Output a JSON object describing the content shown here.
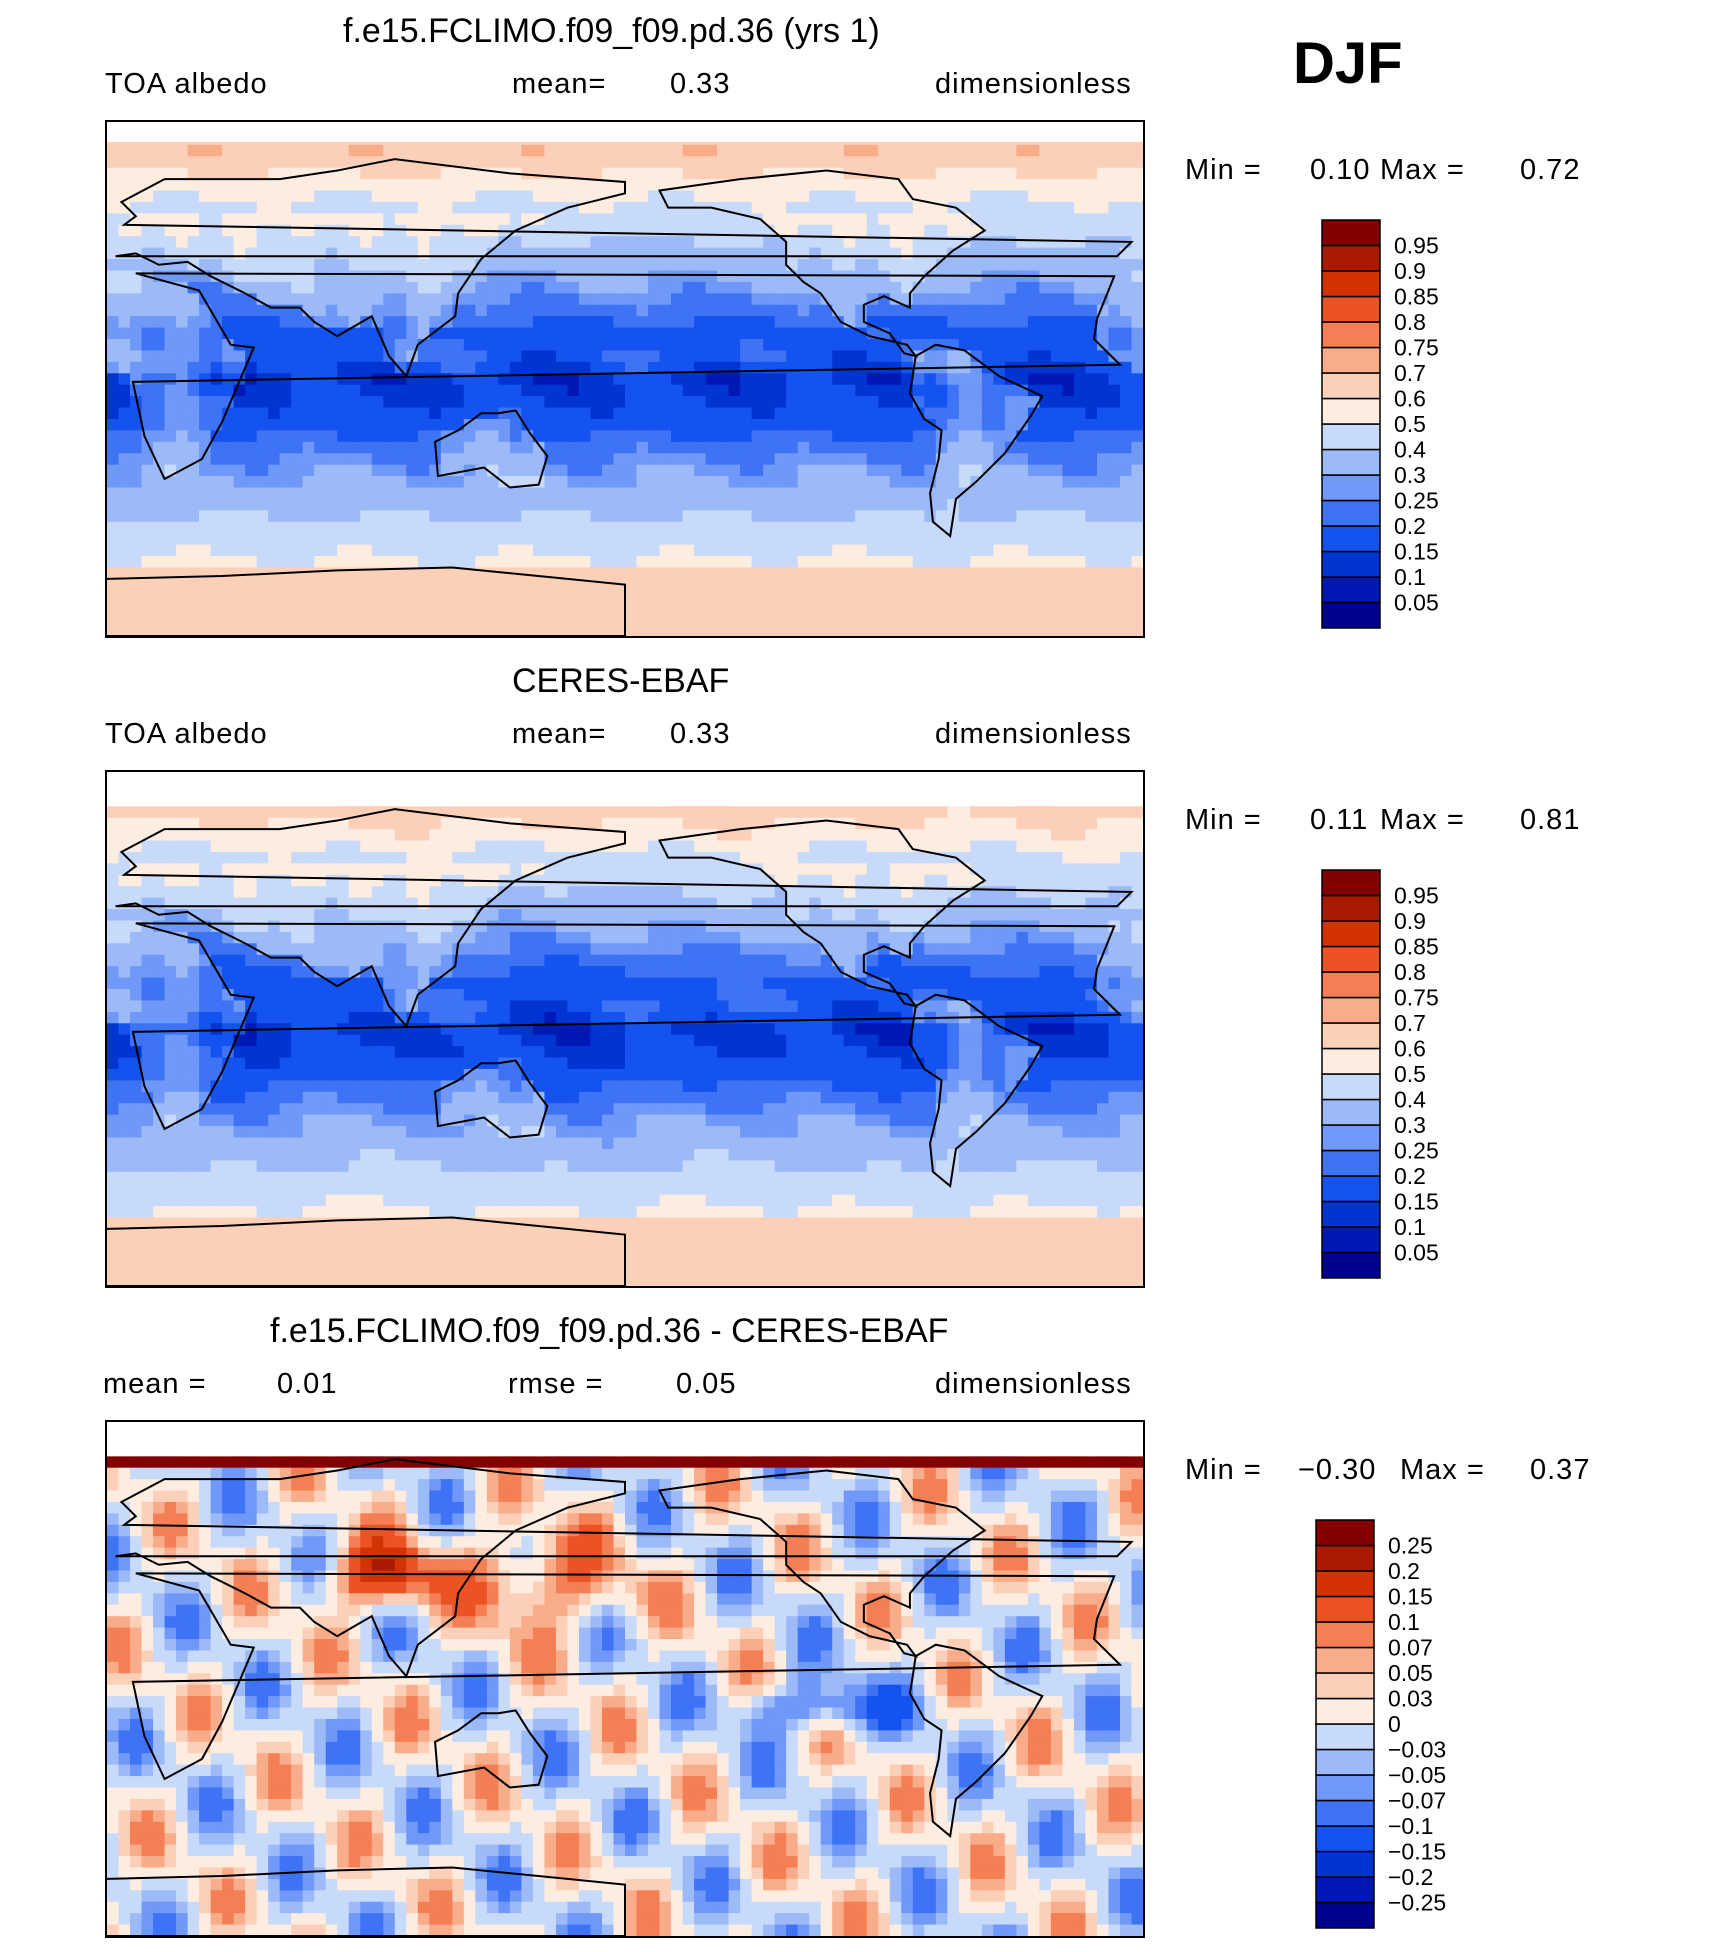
{
  "season": "DJF",
  "colors": {
    "ramp": [
      "#00008e",
      "#0018b4",
      "#0035d3",
      "#1553f0",
      "#3d73f4",
      "#6f98f8",
      "#9dbaf8",
      "#c8daf9",
      "#e2edfb",
      "#fdece0",
      "#fcd0b8",
      "#f9ac8a",
      "#f47f55",
      "#eb5325",
      "#d23204",
      "#a91a00",
      "#840000"
    ],
    "coast": "#000000"
  },
  "panels": [
    {
      "id": "model",
      "title": "f.e15.FCLIMO.f09_f09.pd.36 (yrs 1)",
      "left_label": "TOA albedo",
      "mid_label": "mean=",
      "mid_value": "0.33",
      "right_label": "dimensionless",
      "min_label": "Min =",
      "min_value": "0.10",
      "max_label": "Max =",
      "max_value": "0.72",
      "levels": [
        "0.05",
        "0.1",
        "0.15",
        "0.2",
        "0.25",
        "0.3",
        "0.4",
        "0.5",
        "0.6",
        "0.7",
        "0.75",
        "0.8",
        "0.85",
        "0.9",
        "0.95"
      ],
      "field": "model"
    },
    {
      "id": "obs",
      "title": "CERES-EBAF",
      "left_label": "TOA albedo",
      "mid_label": "mean=",
      "mid_value": "0.33",
      "right_label": "dimensionless",
      "min_label": "Min =",
      "min_value": "0.11",
      "max_label": "Max =",
      "max_value": "0.81",
      "levels": [
        "0.05",
        "0.1",
        "0.15",
        "0.2",
        "0.25",
        "0.3",
        "0.4",
        "0.5",
        "0.6",
        "0.7",
        "0.75",
        "0.8",
        "0.85",
        "0.9",
        "0.95"
      ],
      "field": "obs"
    },
    {
      "id": "diff",
      "title": "f.e15.FCLIMO.f09_f09.pd.36 - CERES-EBAF",
      "left_label": "mean =",
      "left_value": "0.01",
      "mid_label": "rmse =",
      "mid_value": "0.05",
      "right_label": "dimensionless",
      "min_label": "Min =",
      "min_value": "−0.30",
      "max_label": "Max =",
      "max_value": "0.37",
      "levels": [
        "−0.25",
        "−0.2",
        "−0.15",
        "−0.1",
        "−0.07",
        "−0.05",
        "−0.03",
        "0",
        "0.03",
        "0.05",
        "0.07",
        "0.1",
        "0.15",
        "0.2",
        "0.25"
      ],
      "field": "diff"
    }
  ],
  "chart_data": [
    {
      "type": "heatmap",
      "title": "f.e15.FCLIMO.f09_f09.pd.36 (yrs 1)",
      "variable": "TOA albedo",
      "units": "dimensionless",
      "season": "DJF",
      "mean": 0.33,
      "min": 0.1,
      "max": 0.72,
      "contour_levels": [
        0.05,
        0.1,
        0.15,
        0.2,
        0.25,
        0.3,
        0.4,
        0.5,
        0.6,
        0.7,
        0.75,
        0.8,
        0.85,
        0.9,
        0.95
      ]
    },
    {
      "type": "heatmap",
      "title": "CERES-EBAF",
      "variable": "TOA albedo",
      "units": "dimensionless",
      "season": "DJF",
      "mean": 0.33,
      "min": 0.11,
      "max": 0.81,
      "contour_levels": [
        0.05,
        0.1,
        0.15,
        0.2,
        0.25,
        0.3,
        0.4,
        0.5,
        0.6,
        0.7,
        0.75,
        0.8,
        0.85,
        0.9,
        0.95
      ]
    },
    {
      "type": "heatmap",
      "title": "f.e15.FCLIMO.f09_f09.pd.36 - CERES-EBAF",
      "units": "dimensionless",
      "season": "DJF",
      "mean": 0.01,
      "rmse": 0.05,
      "min": -0.3,
      "max": 0.37,
      "contour_levels": [
        -0.25,
        -0.2,
        -0.15,
        -0.1,
        -0.07,
        -0.05,
        -0.03,
        0,
        0.03,
        0.05,
        0.07,
        0.1,
        0.15,
        0.2,
        0.25
      ]
    }
  ]
}
